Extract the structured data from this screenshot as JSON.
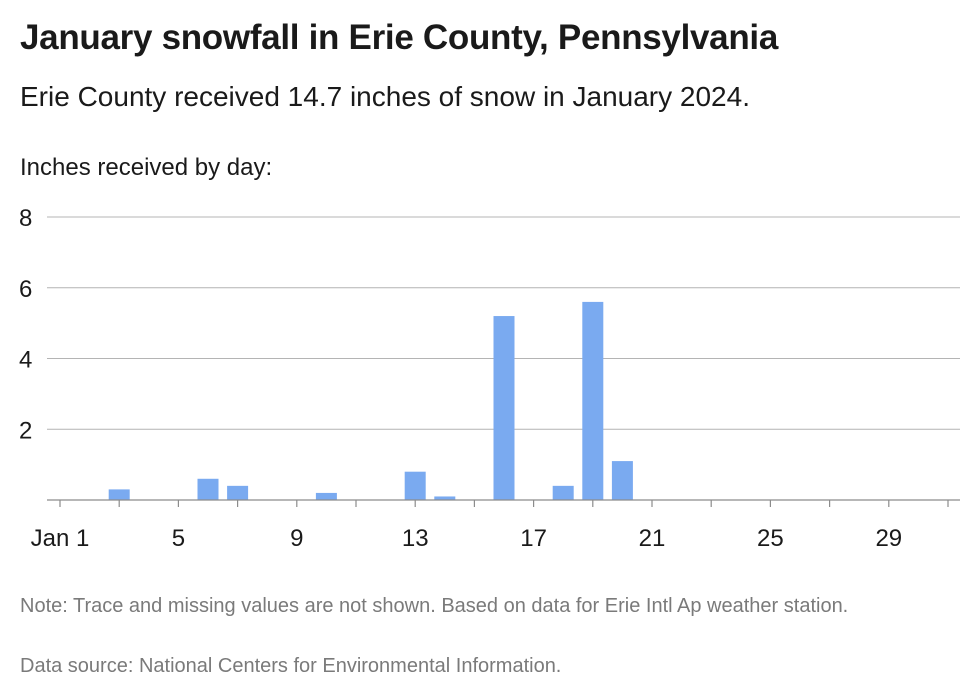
{
  "title": "January snowfall in Erie County, Pennsylvania",
  "subtitle": "Erie County received 14.7 inches of snow in January 2024.",
  "note": "Note: Trace and missing values are not shown. Based on data for Erie Intl Ap weather station.",
  "source": "Data source: National Centers for Environmental Information.",
  "chart_data": {
    "type": "bar",
    "ylabel": "Inches received by day:",
    "xlabel": "",
    "ylim": [
      0,
      8
    ],
    "xlim": [
      1,
      31
    ],
    "grid": true,
    "bar_color": "#7aaaf0",
    "y_ticks": [
      2,
      4,
      6,
      8
    ],
    "x_ticks": [
      {
        "day": 1,
        "label": "Jan 1"
      },
      {
        "day": 5,
        "label": "5"
      },
      {
        "day": 9,
        "label": "9"
      },
      {
        "day": 13,
        "label": "13"
      },
      {
        "day": 17,
        "label": "17"
      },
      {
        "day": 21,
        "label": "21"
      },
      {
        "day": 25,
        "label": "25"
      },
      {
        "day": 29,
        "label": "29"
      }
    ],
    "x": [
      "Jan 3",
      "Jan 6",
      "Jan 7",
      "Jan 10",
      "Jan 13",
      "Jan 14",
      "Jan 16",
      "Jan 18",
      "Jan 19",
      "Jan 20"
    ],
    "days": [
      3,
      6,
      7,
      10,
      13,
      14,
      16,
      18,
      19,
      20
    ],
    "values": [
      0.3,
      0.6,
      0.4,
      0.2,
      0.8,
      0.1,
      5.2,
      0.4,
      5.6,
      1.1
    ]
  }
}
